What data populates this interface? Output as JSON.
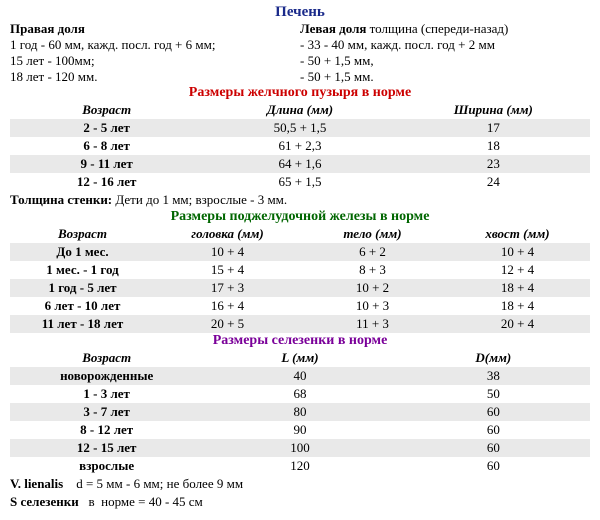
{
  "colors": {
    "title": "#1a2a8a",
    "red": "#cc0000",
    "green": "#006600",
    "purple": "#7a0099",
    "band": "#e9e9e9",
    "text": "#000000",
    "bg": "#ffffff"
  },
  "liver": {
    "title": "Печень",
    "left_header": "Правая доля",
    "right_header_bold": "Левая доля",
    "right_header_rest": " толщина (спереди-назад)",
    "left_lines": [
      "1 год  - 60 мм, кажд. посл. год + 6 мм;",
      "15 лет - 100мм;",
      "18 лет - 120 мм."
    ],
    "right_lines": [
      "- 33 - 40 мм, кажд. посл. год  + 2 мм",
      "- 50 + 1,5 мм,",
      "- 50 + 1,5 мм."
    ]
  },
  "gallbladder": {
    "title": "Размеры желчного пузыря в норме",
    "headers": [
      "Возраст",
      "Длина (мм)",
      "Ширина (мм)"
    ],
    "rows": [
      {
        "age": "2 - 5 лет",
        "len": "50,5 + 1,5",
        "wid": "17"
      },
      {
        "age": "6 - 8 лет",
        "len": "61 + 2,3",
        "wid": "18"
      },
      {
        "age": "9 - 11 лет",
        "len": "64 + 1,6",
        "wid": "23"
      },
      {
        "age": "12 - 16 лет",
        "len": "65 + 1,5",
        "wid": "24"
      }
    ],
    "note_bold": "Толщина стенки:",
    "note_rest": "  Дети  до 1 мм;  взрослые - 3 мм."
  },
  "pancreas": {
    "title": "Размеры поджелудочной железы в норме",
    "headers": [
      "Возраст",
      "головка (мм)",
      "тело (мм)",
      "хвост (мм)"
    ],
    "rows": [
      {
        "age": "До 1 мес.",
        "c1": "10 + 4",
        "c2": "6 + 2",
        "c3": "10 + 4"
      },
      {
        "age": "1 мес. - 1 год",
        "c1": "15 + 4",
        "c2": "8 + 3",
        "c3": "12 + 4"
      },
      {
        "age": "1 год - 5 лет",
        "c1": "17 + 3",
        "c2": "10 + 2",
        "c3": "18 + 4"
      },
      {
        "age": "6 лет - 10 лет",
        "c1": "16 + 4",
        "c2": "10 + 3",
        "c3": "18 + 4"
      },
      {
        "age": "11 лет - 18 лет",
        "c1": "20 + 5",
        "c2": "11 + 3",
        "c3": "20 + 4"
      }
    ]
  },
  "spleen": {
    "title": "Размеры селезенки в норме",
    "headers": [
      "Возраст",
      "L (мм)",
      "D(мм)"
    ],
    "rows": [
      {
        "age": "новорожденные",
        "l": "40",
        "d": "38"
      },
      {
        "age": "1 - 3 лет",
        "l": "68",
        "d": "50"
      },
      {
        "age": "3 - 7 лет",
        "l": "80",
        "d": "60"
      },
      {
        "age": "8 - 12 лет",
        "l": "90",
        "d": "60"
      },
      {
        "age": "12 - 15 лет",
        "l": "100",
        "d": "60"
      },
      {
        "age": "взрослые",
        "l": "120",
        "d": "60"
      }
    ],
    "foot1_label": "V. lienalis",
    "foot1_text": "    d = 5 мм - 6 мм; не более 9 мм",
    "foot2_label": "S селезенки",
    "foot2_text": "   в  норме = 40 - 45 см"
  }
}
